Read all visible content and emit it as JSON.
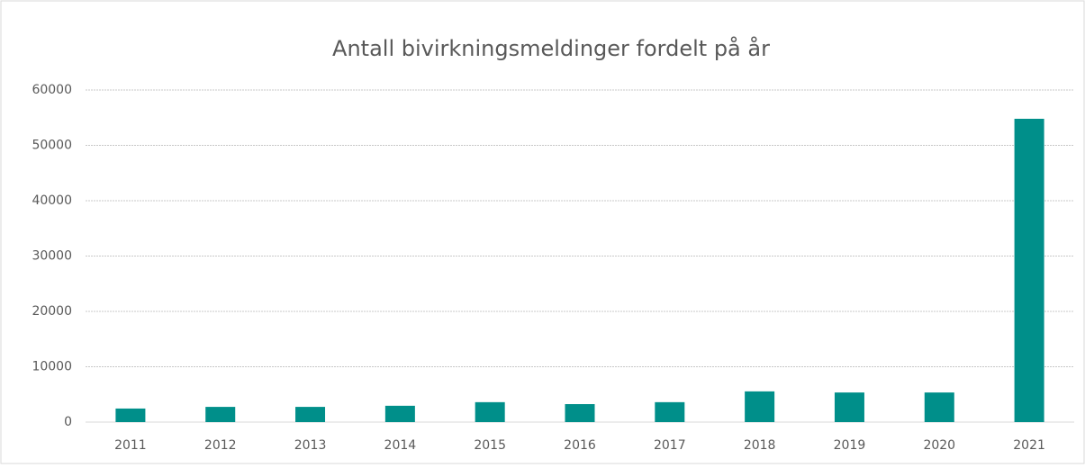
{
  "chart_data": {
    "type": "bar",
    "title": "Antall bivirkningsmeldinger fordelt på år",
    "categories": [
      "2011",
      "2012",
      "2013",
      "2014",
      "2015",
      "2016",
      "2017",
      "2018",
      "2019",
      "2020",
      "2021"
    ],
    "values": [
      2450,
      2750,
      2750,
      2950,
      3600,
      3250,
      3600,
      5550,
      5350,
      5350,
      54800
    ],
    "color": "#008f8a",
    "ylim": [
      0,
      60000
    ],
    "yticks": [
      0,
      10000,
      20000,
      30000,
      40000,
      50000,
      60000
    ],
    "grid": true
  }
}
